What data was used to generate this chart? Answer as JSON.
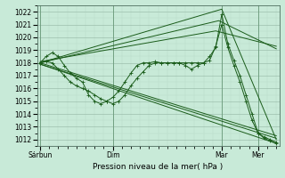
{
  "title": "Pression niveau de la mer( hPa )",
  "ylim": [
    1011.5,
    1022.5
  ],
  "yticks": [
    1012,
    1013,
    1014,
    1015,
    1016,
    1017,
    1018,
    1019,
    1020,
    1021,
    1022
  ],
  "xtick_labels": [
    "Sárbun",
    "Dim",
    "Mar",
    "Mer"
  ],
  "xtick_positions": [
    0,
    48,
    120,
    144
  ],
  "xlim": [
    -2,
    158
  ],
  "background_color": "#c8ead8",
  "grid_color_major": "#9dbfad",
  "grid_color_minor": "#b8d8c8",
  "line_color": "#1a5c1a",
  "straight_lines": [
    [
      0,
      1017.9,
      156,
      1011.7
    ],
    [
      0,
      1017.9,
      156,
      1012.1
    ],
    [
      0,
      1018.0,
      156,
      1012.3
    ]
  ],
  "peak_lines": [
    [
      0,
      1018.0,
      120,
      1022.2,
      156,
      1012.0
    ],
    [
      0,
      1018.0,
      118,
      1021.3,
      156,
      1019.1
    ],
    [
      0,
      1018.1,
      116,
      1020.5,
      156,
      1019.3
    ]
  ],
  "wiggly1_x": [
    0,
    4,
    8,
    12,
    16,
    20,
    24,
    28,
    32,
    36,
    40,
    44,
    48,
    52,
    56,
    60,
    64,
    68,
    72,
    76,
    80,
    84,
    88,
    92,
    96,
    100,
    104,
    108,
    112,
    116,
    120,
    124,
    128,
    132,
    136,
    140,
    144,
    148,
    152,
    156
  ],
  "wiggly1_y": [
    1018.0,
    1018.5,
    1018.8,
    1018.5,
    1017.8,
    1017.2,
    1016.8,
    1016.5,
    1015.5,
    1015.0,
    1014.8,
    1015.0,
    1015.3,
    1015.8,
    1016.5,
    1017.2,
    1017.8,
    1018.0,
    1018.0,
    1018.1,
    1018.0,
    1018.0,
    1018.0,
    1018.0,
    1017.8,
    1017.5,
    1017.8,
    1018.0,
    1018.5,
    1019.2,
    1021.8,
    1019.5,
    1018.2,
    1017.0,
    1015.5,
    1014.0,
    1012.5,
    1012.1,
    1011.9,
    1011.7
  ],
  "wiggly2_x": [
    0,
    4,
    8,
    12,
    16,
    20,
    24,
    28,
    32,
    36,
    40,
    44,
    48,
    52,
    56,
    60,
    64,
    68,
    72,
    76,
    80,
    84,
    88,
    92,
    96,
    100,
    104,
    108,
    112,
    116,
    120,
    124,
    128,
    132,
    136,
    140,
    144,
    148,
    152,
    156
  ],
  "wiggly2_y": [
    1018.0,
    1018.1,
    1018.0,
    1017.5,
    1017.0,
    1016.5,
    1016.2,
    1016.0,
    1015.8,
    1015.5,
    1015.2,
    1015.0,
    1014.8,
    1015.0,
    1015.5,
    1016.2,
    1016.8,
    1017.3,
    1017.8,
    1018.0,
    1018.0,
    1018.0,
    1018.0,
    1018.0,
    1018.0,
    1018.0,
    1018.0,
    1018.0,
    1018.2,
    1019.3,
    1021.0,
    1019.2,
    1017.8,
    1016.5,
    1015.0,
    1013.5,
    1012.5,
    1012.2,
    1012.0,
    1011.8
  ]
}
